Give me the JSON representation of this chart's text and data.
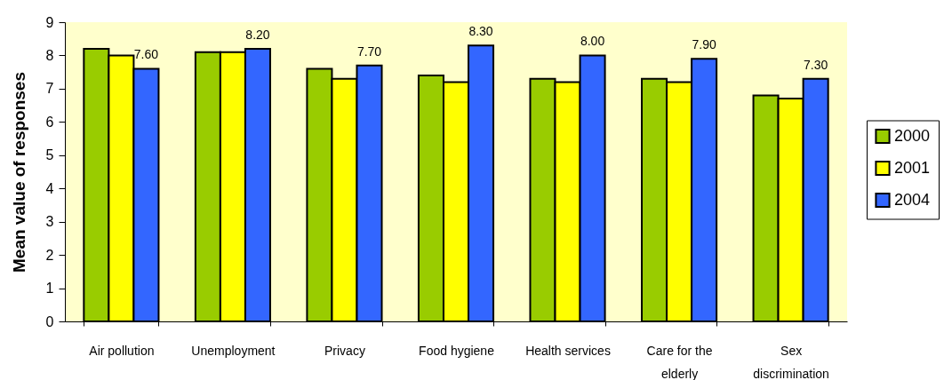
{
  "chart_data": {
    "type": "bar",
    "ylabel": "Mean value of responses",
    "categories": [
      "Air pollution",
      "Unemployment",
      "Privacy",
      "Food hygiene",
      "Health services",
      "Care for the elderly",
      "Sex discrimination"
    ],
    "series": [
      {
        "name": "2000",
        "color": "#99cc00",
        "values": [
          8.2,
          8.1,
          7.6,
          7.4,
          7.3,
          7.3,
          6.8
        ]
      },
      {
        "name": "2001",
        "color": "#ffff00",
        "values": [
          8.0,
          8.1,
          7.3,
          7.2,
          7.2,
          7.2,
          6.7
        ]
      },
      {
        "name": "2004",
        "color": "#3366ff",
        "values": [
          7.6,
          8.2,
          7.7,
          8.3,
          8.0,
          7.9,
          7.3
        ],
        "value_labels": [
          "7.60",
          "8.20",
          "7.70",
          "8.30",
          "8.00",
          "7.90",
          "7.30"
        ]
      }
    ],
    "ylim": [
      0,
      9
    ],
    "yticks": [
      0,
      1,
      2,
      3,
      4,
      5,
      6,
      7,
      8,
      9
    ],
    "grid": false,
    "legend": "right"
  }
}
